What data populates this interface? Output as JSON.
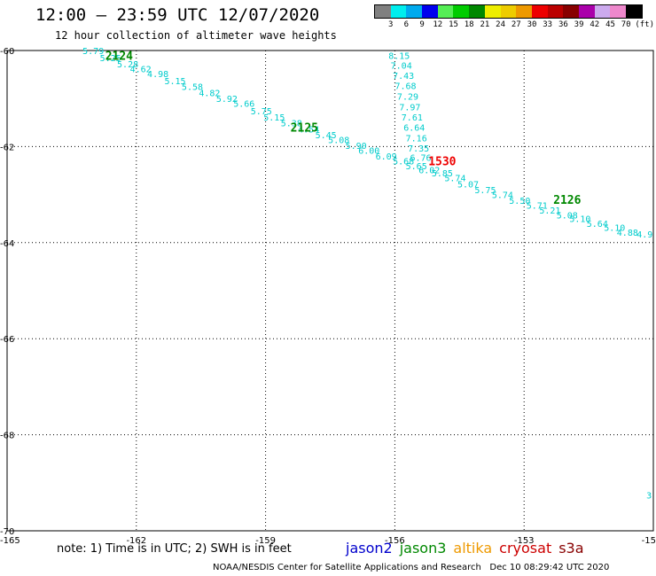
{
  "header": {
    "title": "12:00 – 23:59 UTC 12/07/2020",
    "subtitle": "12 hour collection of altimeter wave heights"
  },
  "legend": {
    "labels": [
      "3",
      "6",
      "9",
      "12",
      "15",
      "18",
      "21",
      "24",
      "27",
      "30",
      "33",
      "36",
      "39",
      "42",
      "45",
      "70"
    ],
    "unit": "(ft)",
    "colors": [
      "#808080",
      "#00eeee",
      "#00aaee",
      "#0000ee",
      "#55ee55",
      "#00cc00",
      "#008800",
      "#eeee00",
      "#eecc00",
      "#ee9900",
      "#ee0000",
      "#bb0000",
      "#880000",
      "#aa00aa",
      "#ccaaee",
      "#ee88cc",
      "#000000"
    ]
  },
  "axes": {
    "x_ticks": [
      "-165",
      "-162",
      "-159",
      "-156",
      "-153",
      "-15"
    ],
    "y_ticks": [
      "-60",
      "-62",
      "-64",
      "-66",
      "-68",
      "-70"
    ]
  },
  "chart_data": {
    "type": "scatter",
    "xlim": [
      -165,
      -150
    ],
    "ylim": [
      -70,
      -60
    ],
    "pass_labels": [
      {
        "text": "2124",
        "lon": -162.4,
        "lat": -60.1,
        "color": "#008800"
      },
      {
        "text": "2125",
        "lon": -158.1,
        "lat": -61.6,
        "color": "#008800"
      },
      {
        "text": "2126",
        "lon": -152.0,
        "lat": -63.1,
        "color": "#008800"
      },
      {
        "text": "1530",
        "lon": -154.9,
        "lat": -62.3,
        "color": "#ee0000"
      }
    ],
    "points": [
      {
        "lon": -163.0,
        "lat": -60.0,
        "value": "5.79"
      },
      {
        "lon": -162.6,
        "lat": -60.15,
        "value": "5.25"
      },
      {
        "lon": -162.2,
        "lat": -60.28,
        "value": "5.28"
      },
      {
        "lon": -161.9,
        "lat": -60.38,
        "value": "4.62"
      },
      {
        "lon": -161.5,
        "lat": -60.48,
        "value": "4.98"
      },
      {
        "lon": -161.1,
        "lat": -60.63,
        "value": "5.15"
      },
      {
        "lon": -160.7,
        "lat": -60.75,
        "value": "5.58"
      },
      {
        "lon": -160.3,
        "lat": -60.88,
        "value": "4.82"
      },
      {
        "lon": -159.9,
        "lat": -61.0,
        "value": "5.92"
      },
      {
        "lon": -159.5,
        "lat": -61.1,
        "value": "5.66"
      },
      {
        "lon": -159.1,
        "lat": -61.25,
        "value": "5.75"
      },
      {
        "lon": -158.8,
        "lat": -61.38,
        "value": "5.15"
      },
      {
        "lon": -158.4,
        "lat": -61.5,
        "value": "5.38"
      },
      {
        "lon": -158.0,
        "lat": -61.63,
        "value": "4.54"
      },
      {
        "lon": -157.6,
        "lat": -61.75,
        "value": "5.45"
      },
      {
        "lon": -157.3,
        "lat": -61.85,
        "value": "5.08"
      },
      {
        "lon": -156.9,
        "lat": -61.97,
        "value": "5.90"
      },
      {
        "lon": -156.6,
        "lat": -62.08,
        "value": "6.00"
      },
      {
        "lon": -156.2,
        "lat": -62.2,
        "value": "6.09"
      },
      {
        "lon": -155.8,
        "lat": -62.3,
        "value": "5.68"
      },
      {
        "lon": -155.5,
        "lat": -62.4,
        "value": "5.65"
      },
      {
        "lon": -155.2,
        "lat": -62.48,
        "value": "6.02"
      },
      {
        "lon": -154.9,
        "lat": -62.55,
        "value": "5.85"
      },
      {
        "lon": -154.6,
        "lat": -62.65,
        "value": "5.74"
      },
      {
        "lon": -154.3,
        "lat": -62.78,
        "value": "5.07"
      },
      {
        "lon": -153.9,
        "lat": -62.9,
        "value": "5.75"
      },
      {
        "lon": -153.5,
        "lat": -63.0,
        "value": "5.74"
      },
      {
        "lon": -153.1,
        "lat": -63.12,
        "value": "5.50"
      },
      {
        "lon": -152.7,
        "lat": -63.22,
        "value": "5.71"
      },
      {
        "lon": -152.4,
        "lat": -63.32,
        "value": "5.21"
      },
      {
        "lon": -152.0,
        "lat": -63.42,
        "value": "5.08"
      },
      {
        "lon": -151.7,
        "lat": -63.5,
        "value": "5.10"
      },
      {
        "lon": -151.3,
        "lat": -63.6,
        "value": "5.64"
      },
      {
        "lon": -150.9,
        "lat": -63.68,
        "value": "5.10"
      },
      {
        "lon": -150.6,
        "lat": -63.78,
        "value": "4.88"
      },
      {
        "lon": -150.2,
        "lat": -63.82,
        "value": "4.9"
      },
      {
        "lon": -155.9,
        "lat": -60.1,
        "value": "8.15"
      },
      {
        "lon": -155.85,
        "lat": -60.3,
        "value": "7.04"
      },
      {
        "lon": -155.8,
        "lat": -60.52,
        "value": "7.43"
      },
      {
        "lon": -155.75,
        "lat": -60.73,
        "value": "7.68"
      },
      {
        "lon": -155.7,
        "lat": -60.95,
        "value": "7.29"
      },
      {
        "lon": -155.65,
        "lat": -61.17,
        "value": "7.97"
      },
      {
        "lon": -155.6,
        "lat": -61.38,
        "value": "7.61"
      },
      {
        "lon": -155.55,
        "lat": -61.6,
        "value": "6.64"
      },
      {
        "lon": -155.5,
        "lat": -61.82,
        "value": "7.16"
      },
      {
        "lon": -155.45,
        "lat": -62.03,
        "value": "7.35"
      },
      {
        "lon": -155.4,
        "lat": -62.22,
        "value": "6.76"
      },
      {
        "lon": -150.1,
        "lat": -69.25,
        "value": "3"
      }
    ]
  },
  "footer": {
    "note": "note: 1) Time is in UTC; 2) SWH is in feet",
    "satellites": [
      {
        "name": "jason2",
        "color": "#0000cc"
      },
      {
        "name": "jason3",
        "color": "#008800"
      },
      {
        "name": "altika",
        "color": "#ee9900"
      },
      {
        "name": "cryosat",
        "color": "#cc0000"
      },
      {
        "name": "s3a",
        "color": "#880000"
      }
    ],
    "credit": "NOAA/NESDIS Center for Satellite Applications and Research",
    "timestamp": "Dec 10 08:29:42 UTC 2020"
  }
}
